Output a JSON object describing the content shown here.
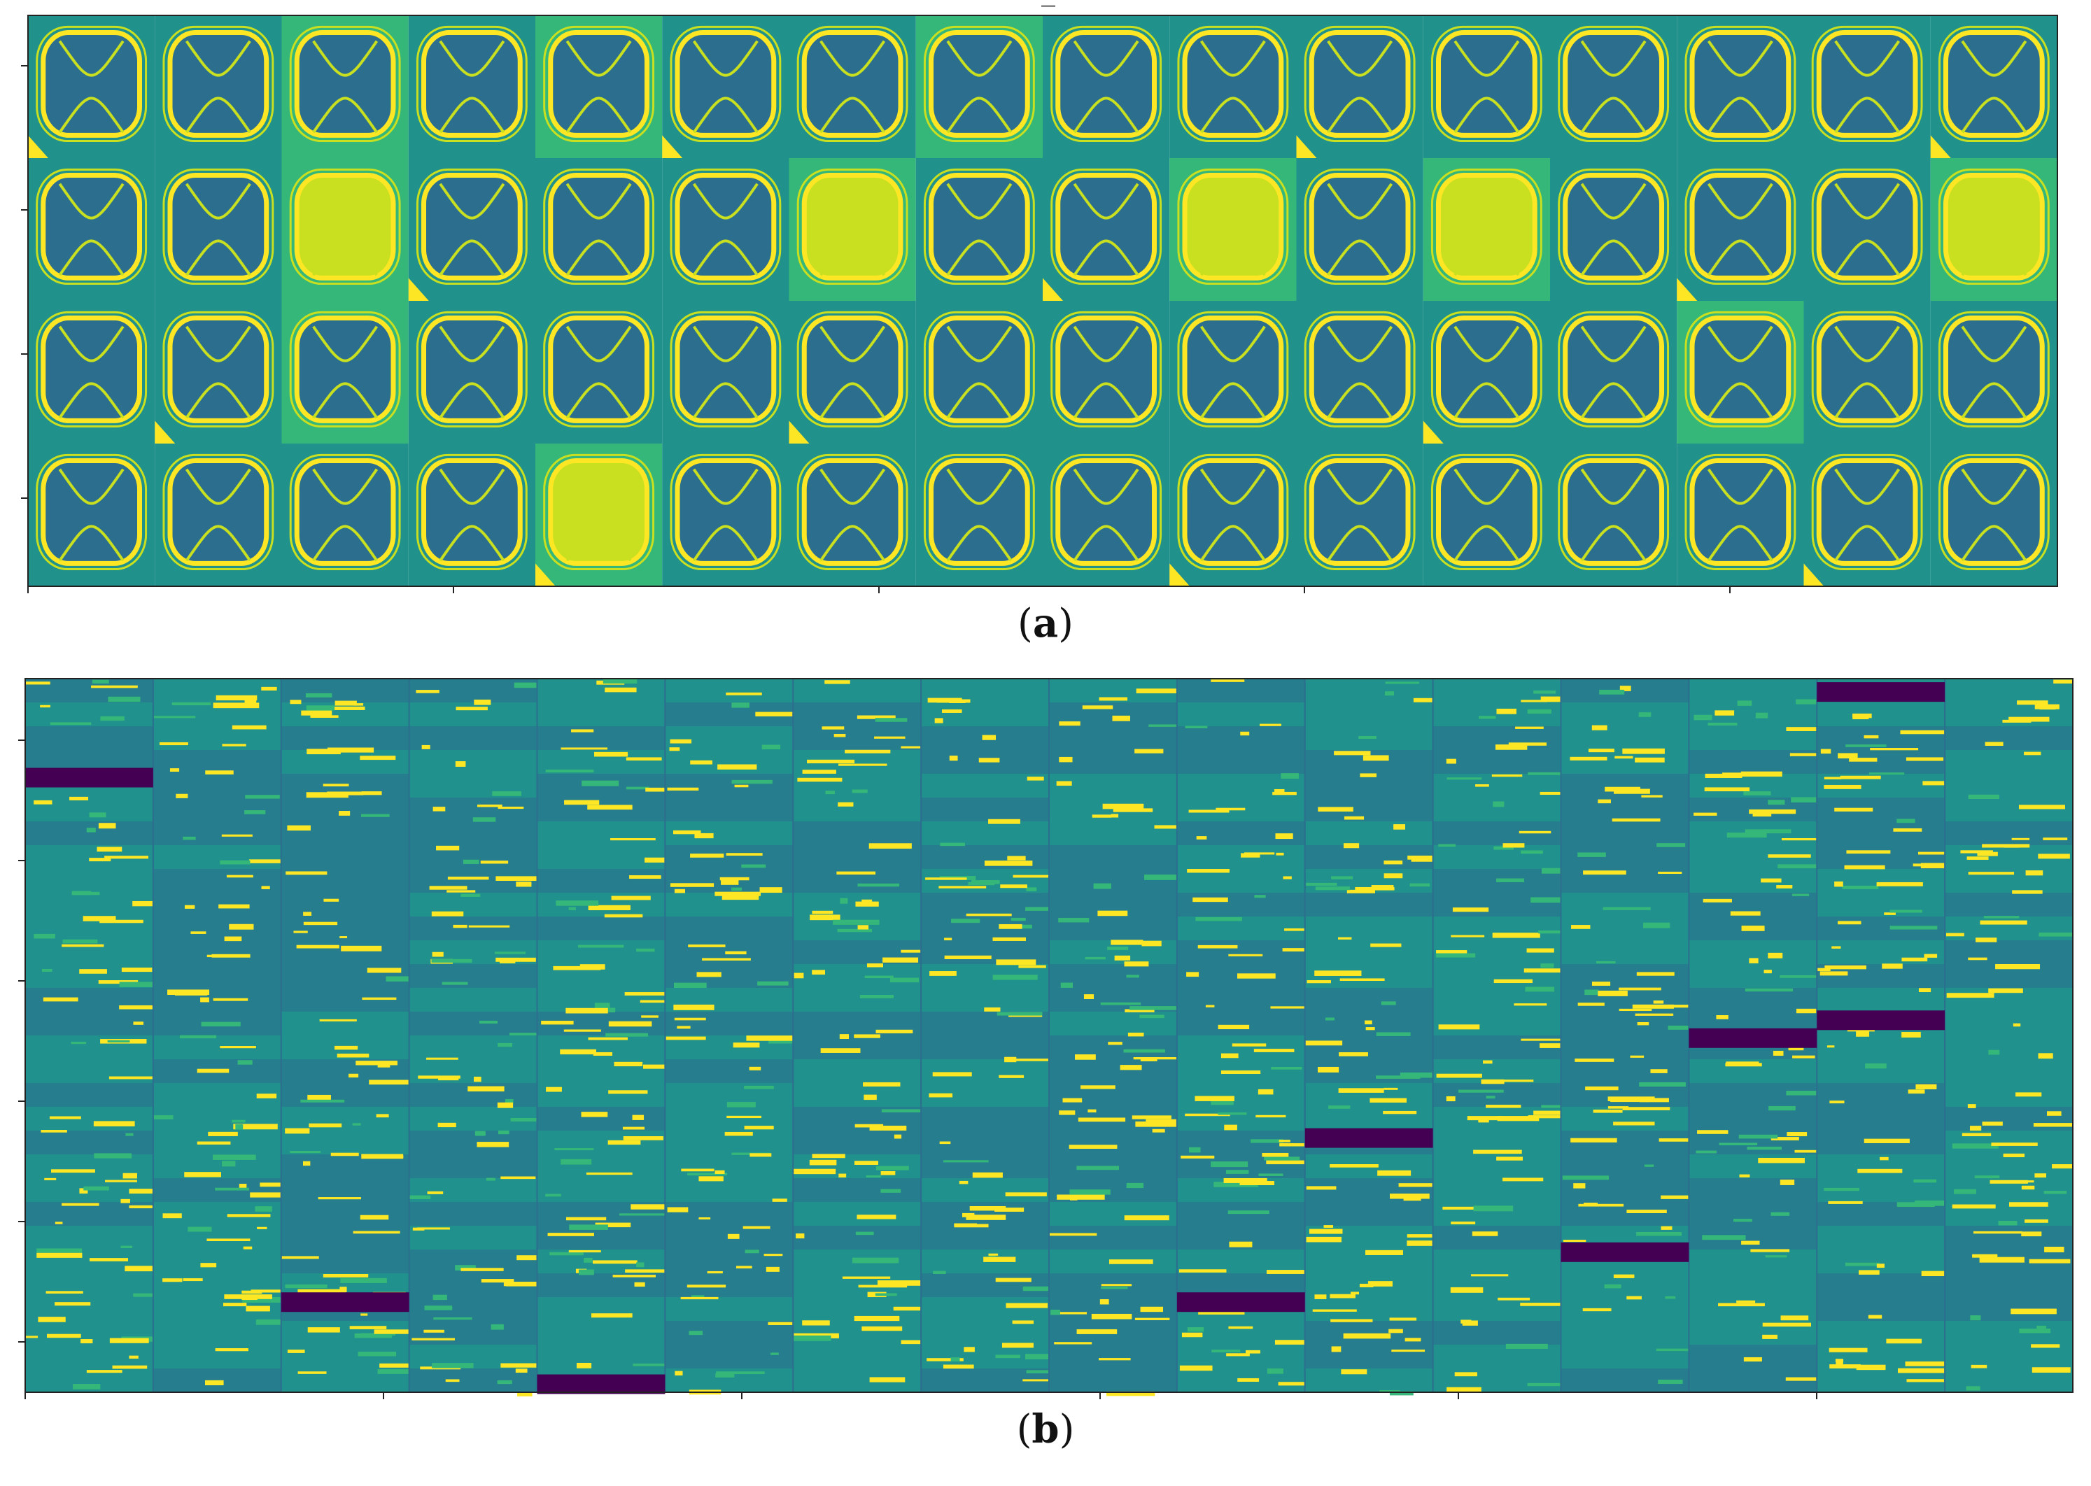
{
  "panel_a": {
    "caption_letter": "a",
    "top_tick_label": "_",
    "grid_rows": 4,
    "grid_cols": 16,
    "colormap": [
      "#440154",
      "#2c6e8e",
      "#21918c",
      "#35b779",
      "#c8e020",
      "#fde725"
    ]
  },
  "panel_b": {
    "caption_letter": "b",
    "grid_cols": 16,
    "colormap": [
      "#440154",
      "#2c6e8e",
      "#21918c",
      "#35b779",
      "#c8e020",
      "#fde725"
    ]
  }
}
